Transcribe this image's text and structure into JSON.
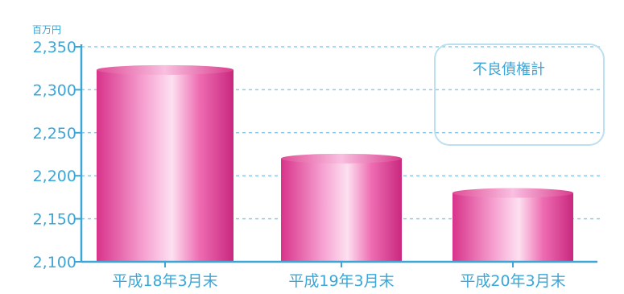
{
  "chart_data": {
    "type": "bar",
    "unit": "百万円",
    "categories": [
      "平成18年3月末",
      "平成19年3月末",
      "平成20年3月末"
    ],
    "series": [
      {
        "name": "不良債権計",
        "values": [
          2323,
          2220,
          2180
        ]
      }
    ],
    "yticks": [
      "2,100",
      "2,150",
      "2,200",
      "2,250",
      "2,300",
      "2,350"
    ],
    "ylim": [
      2100,
      2350
    ],
    "grid": true,
    "legend_position": "top-right",
    "colors": {
      "axis": "#3aa7d8",
      "grid": "#8fcbe6",
      "bar_dark": "#d8338a",
      "bar_mid": "#ee6cb2",
      "bar_light": "#fbd3ea",
      "legend_box": "#bde0f0"
    }
  }
}
